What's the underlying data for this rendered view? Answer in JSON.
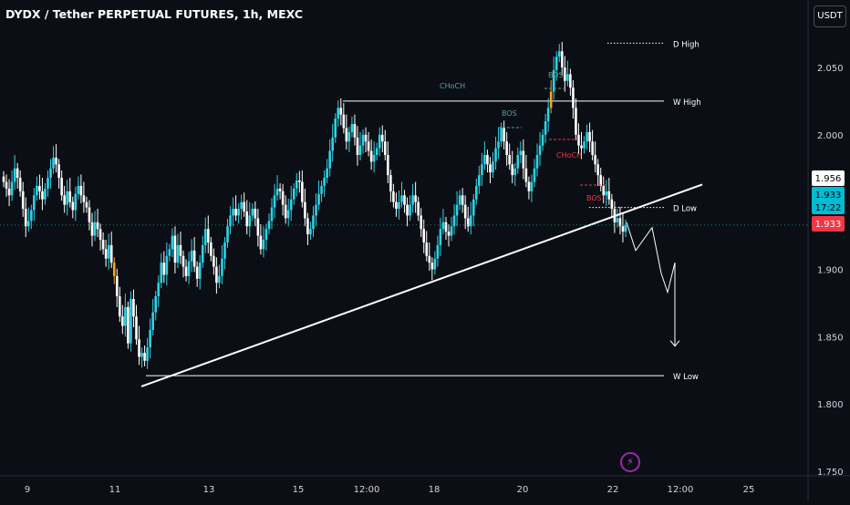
{
  "header": {
    "title": "DYDX / Tether PERPETUAL FUTURES, 1h, MEXC",
    "currency_button": "USDT"
  },
  "colors": {
    "background": "#0c0e15",
    "up_candle": "#2ed3e6",
    "down_candle": "#ffffff",
    "highlight_candle": "#f5a623",
    "price_tag_last": "#f23645",
    "price_tag_cyan": "#00bcd4",
    "bos_green": "#4ea89a",
    "bos_red": "#f23645"
  },
  "chart_data": {
    "type": "candlestick",
    "y_axis": {
      "min": 1.75,
      "max": 2.08,
      "ticks": [
        "2.050",
        "2.000",
        "1.950",
        "1.900",
        "1.850",
        "1.800",
        "1.750"
      ]
    },
    "x_axis": {
      "ticks": [
        "9",
        "11",
        "13",
        "15",
        "12:00",
        "18",
        "20",
        "22",
        "12:00",
        "25"
      ]
    },
    "price_tags": {
      "level": "1.956",
      "current": "1.933",
      "countdown": "17:22",
      "last": "1.933"
    },
    "levels": [
      {
        "label": "D High",
        "price": 2.068,
        "style": "dotted"
      },
      {
        "label": "W High",
        "price": 2.025,
        "style": "solid"
      },
      {
        "label": "D Low",
        "price": 1.946,
        "style": "dotted"
      },
      {
        "label": "W Low",
        "price": 1.821,
        "style": "solid"
      }
    ],
    "annotations": {
      "choch_green": "CHoCH",
      "bos_green_1": "BOS",
      "bos_green_2": "BOS",
      "choch_red": "CHoCH",
      "bos_red": "BOS"
    },
    "trendline": {
      "from_price": 1.813,
      "to_price": 1.963
    },
    "projection": [
      1.935,
      1.914,
      1.931,
      1.897,
      1.883,
      1.905,
      1.843
    ],
    "series": [
      {
        "close": [
          1.965,
          1.96,
          1.955,
          1.965,
          1.975,
          1.968,
          1.958,
          1.945,
          1.932,
          1.936,
          1.944,
          1.955,
          1.962,
          1.958,
          1.952,
          1.96,
          1.968,
          1.975,
          1.983,
          1.978,
          1.968,
          1.955,
          1.948,
          1.958,
          1.95,
          1.944,
          1.956,
          1.962,
          1.955,
          1.95,
          1.946,
          1.935,
          1.925,
          1.935,
          1.93,
          1.922,
          1.915,
          1.908,
          1.918,
          1.905,
          1.895,
          1.88,
          1.865,
          1.858,
          1.872,
          1.845,
          1.878,
          1.865,
          1.848,
          1.835,
          1.838,
          1.832,
          1.842,
          1.855,
          1.868,
          1.88,
          1.89,
          1.905,
          1.896,
          1.91,
          1.915,
          1.925,
          1.905,
          1.918,
          1.91,
          1.902,
          1.895,
          1.906,
          1.914,
          1.902,
          1.893,
          1.905,
          1.918,
          1.93,
          1.92,
          1.91,
          1.902,
          1.89,
          1.895,
          1.908,
          1.92,
          1.932,
          1.94,
          1.945,
          1.94,
          1.945,
          1.95,
          1.943,
          1.932,
          1.94,
          1.945,
          1.938,
          1.925,
          1.915,
          1.922,
          1.93,
          1.936,
          1.946,
          1.955,
          1.96,
          1.958,
          1.948,
          1.938,
          1.944,
          1.952,
          1.96,
          1.966,
          1.965,
          1.95,
          1.938,
          1.926,
          1.93,
          1.94,
          1.948,
          1.956,
          1.962,
          1.968,
          1.975,
          1.988,
          1.998,
          2.012,
          2.02,
          2.015,
          2.005,
          1.995,
          2.002,
          2.008,
          1.998,
          1.985,
          1.992,
          2.0,
          1.995,
          1.988,
          1.98,
          1.985,
          1.99,
          2.0,
          1.995,
          1.985,
          1.97,
          1.958,
          1.95,
          1.945,
          1.95,
          1.955,
          1.948,
          1.94,
          1.948,
          1.955,
          1.95,
          1.94,
          1.93,
          1.92,
          1.91,
          1.905,
          1.9,
          1.908,
          1.918,
          1.93,
          1.935,
          1.928,
          1.925,
          1.932,
          1.94,
          1.948,
          1.955,
          1.948,
          1.938,
          1.932,
          1.94,
          1.952,
          1.962,
          1.97,
          1.978,
          1.985,
          1.978,
          1.972,
          1.98,
          1.99,
          1.995,
          2.005,
          1.995,
          1.985,
          1.978,
          1.97,
          1.975,
          1.985,
          1.988,
          1.975,
          1.965,
          1.958,
          1.965,
          1.975,
          1.985,
          1.992,
          2.0,
          2.01,
          2.02,
          2.032,
          2.048,
          2.058,
          2.062,
          2.05,
          2.04,
          2.045,
          2.035,
          2.02,
          2.0,
          1.992,
          1.99,
          1.995,
          2.002,
          1.995,
          1.985,
          1.978,
          1.97,
          1.962,
          1.955,
          1.958,
          1.952,
          1.945,
          1.935,
          1.938,
          1.932,
          1.928,
          1.933
        ]
      }
    ]
  }
}
